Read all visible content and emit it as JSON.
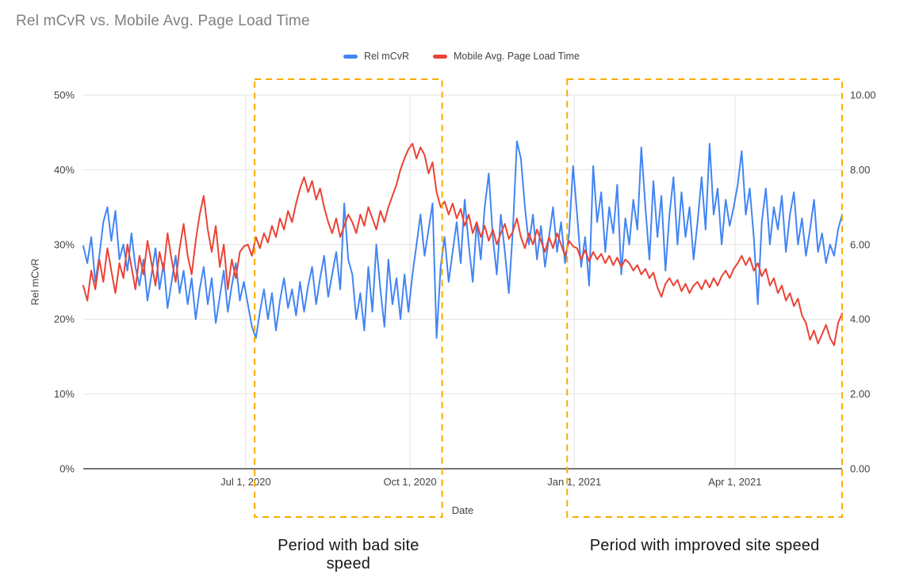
{
  "title": "Rel mCvR vs. Mobile Avg. Page Load Time",
  "chart_data": {
    "type": "line",
    "title": "Rel mCvR vs. Mobile Avg. Page Load Time",
    "legend_position": "top",
    "grid": true,
    "x_axis": {
      "label": "Date",
      "range_days": [
        0,
        425
      ],
      "ticks": [
        {
          "day": 91,
          "label": "Jul 1, 2020"
        },
        {
          "day": 183,
          "label": "Oct 1, 2020"
        },
        {
          "day": 275,
          "label": "Jan 1, 2021"
        },
        {
          "day": 365,
          "label": "Apr 1, 2021"
        }
      ]
    },
    "y_left": {
      "label": "Rel mCvR",
      "min": 0,
      "max": 50,
      "ticks": [
        "0%",
        "10%",
        "20%",
        "30%",
        "40%",
        "50%"
      ]
    },
    "y_right": {
      "label": "",
      "min": 0,
      "max": 10,
      "ticks": [
        "0.00",
        "2.00",
        "4.00",
        "6.00",
        "8.00",
        "10.00"
      ]
    },
    "series": [
      {
        "name": "Rel mCvR",
        "axis": "left",
        "unit": "%",
        "color": "#4285F4",
        "values": [
          29.8,
          27.5,
          31,
          25,
          28.5,
          33,
          35,
          30.5,
          34.5,
          28,
          30,
          26.5,
          31.5,
          27,
          24.5,
          28,
          22.5,
          26,
          29.5,
          24,
          27.5,
          21.5,
          25,
          28.5,
          23.5,
          26.5,
          22,
          25.5,
          20,
          24,
          27,
          22,
          25.5,
          19.5,
          23,
          26.5,
          21,
          24.5,
          27.5,
          22.5,
          25,
          22,
          19,
          17.5,
          21,
          24,
          20,
          23.5,
          18.5,
          22.5,
          25.5,
          21.5,
          24,
          20.5,
          25,
          21,
          24.5,
          27,
          22,
          25.5,
          28.5,
          23,
          26,
          29,
          24,
          35.5,
          28,
          26,
          20,
          23.5,
          18.5,
          27,
          21,
          30,
          24,
          19,
          28,
          22,
          25.5,
          20,
          26,
          21,
          26,
          30,
          34,
          28.5,
          32,
          35.5,
          17.5,
          27,
          31,
          25,
          29,
          33,
          27.5,
          36,
          30,
          25,
          33,
          28,
          35,
          39.5,
          31,
          26,
          34,
          29,
          23.5,
          32,
          43.8,
          41.5,
          35,
          30,
          34,
          28,
          32.5,
          27,
          31,
          35,
          29,
          33,
          27.5,
          31.5,
          40.5,
          34,
          27,
          31,
          24.5,
          40.5,
          33,
          37,
          29,
          35,
          31.5,
          38,
          26,
          33.5,
          30,
          36,
          32,
          43,
          35,
          28,
          38.5,
          31,
          36.5,
          26.5,
          34,
          39,
          30,
          37,
          31,
          35,
          28,
          33,
          39,
          32,
          43.5,
          34,
          37.5,
          30,
          36,
          32.5,
          35,
          38,
          42.5,
          34,
          37.5,
          31,
          22,
          33,
          37.5,
          30,
          35,
          32,
          36.5,
          29,
          34,
          37,
          30,
          33.5,
          28.5,
          32,
          36,
          29,
          31.5,
          27.5,
          30,
          28.5,
          32,
          34
        ]
      },
      {
        "name": "Mobile Avg. Page Load Time",
        "axis": "right",
        "unit": "s",
        "color": "#EA4335",
        "values": [
          4.9,
          4.5,
          5.3,
          4.8,
          5.6,
          5.0,
          5.9,
          5.3,
          4.7,
          5.5,
          5.1,
          6.0,
          5.4,
          4.8,
          5.7,
          5.2,
          6.1,
          5.5,
          4.9,
          5.8,
          5.3,
          6.3,
          5.6,
          5.0,
          5.9,
          6.55,
          5.7,
          5.2,
          6.1,
          6.8,
          7.3,
          6.4,
          5.8,
          6.5,
          5.4,
          6.0,
          4.8,
          5.6,
          5.1,
          5.8,
          5.95,
          6.0,
          5.7,
          6.2,
          5.9,
          6.3,
          6.05,
          6.5,
          6.2,
          6.7,
          6.4,
          6.9,
          6.6,
          7.1,
          7.5,
          7.8,
          7.4,
          7.7,
          7.2,
          7.5,
          7.0,
          6.6,
          6.3,
          6.7,
          6.2,
          6.5,
          6.8,
          6.6,
          6.3,
          6.8,
          6.5,
          7.0,
          6.7,
          6.4,
          6.9,
          6.6,
          7.0,
          7.3,
          7.6,
          8.0,
          8.3,
          8.55,
          8.7,
          8.3,
          8.6,
          8.4,
          7.9,
          8.2,
          7.4,
          7.0,
          7.15,
          6.8,
          7.1,
          6.7,
          6.95,
          6.5,
          6.8,
          6.3,
          6.6,
          6.2,
          6.5,
          6.1,
          6.4,
          6.0,
          6.3,
          6.55,
          6.15,
          6.35,
          6.7,
          6.2,
          5.9,
          6.3,
          6.0,
          6.4,
          6.1,
          5.8,
          6.2,
          5.9,
          6.3,
          6.0,
          5.7,
          6.1,
          5.95,
          5.9,
          5.6,
          5.85,
          5.55,
          5.8,
          5.6,
          5.75,
          5.5,
          5.7,
          5.45,
          5.65,
          5.4,
          5.6,
          5.5,
          5.3,
          5.45,
          5.2,
          5.35,
          5.1,
          5.25,
          4.85,
          4.6,
          4.95,
          5.1,
          4.9,
          5.05,
          4.75,
          4.95,
          4.7,
          4.9,
          5.0,
          4.8,
          5.05,
          4.85,
          5.1,
          4.9,
          5.15,
          5.3,
          5.1,
          5.35,
          5.5,
          5.7,
          5.45,
          5.65,
          5.3,
          5.5,
          5.15,
          5.35,
          4.9,
          5.1,
          4.7,
          4.9,
          4.5,
          4.7,
          4.35,
          4.55,
          4.1,
          3.9,
          3.45,
          3.7,
          3.35,
          3.6,
          3.85,
          3.5,
          3.3,
          3.9,
          4.15
        ]
      }
    ],
    "highlight_regions": [
      {
        "label": "Period with bad site speed",
        "day_start": 96,
        "day_end": 201,
        "color": "#F9AB00"
      },
      {
        "label": "Period with improved site speed",
        "day_start": 271,
        "day_end": 425,
        "color": "#F9AB00"
      }
    ]
  },
  "colors": {
    "series_blue": "#4285F4",
    "series_red": "#EA4335",
    "highlight": "#F9AB00",
    "gridline": "#e2e2e2",
    "axis_line": "#757575",
    "title_text": "#818181",
    "tick_text": "#424242",
    "annotation_text": "#181818"
  }
}
